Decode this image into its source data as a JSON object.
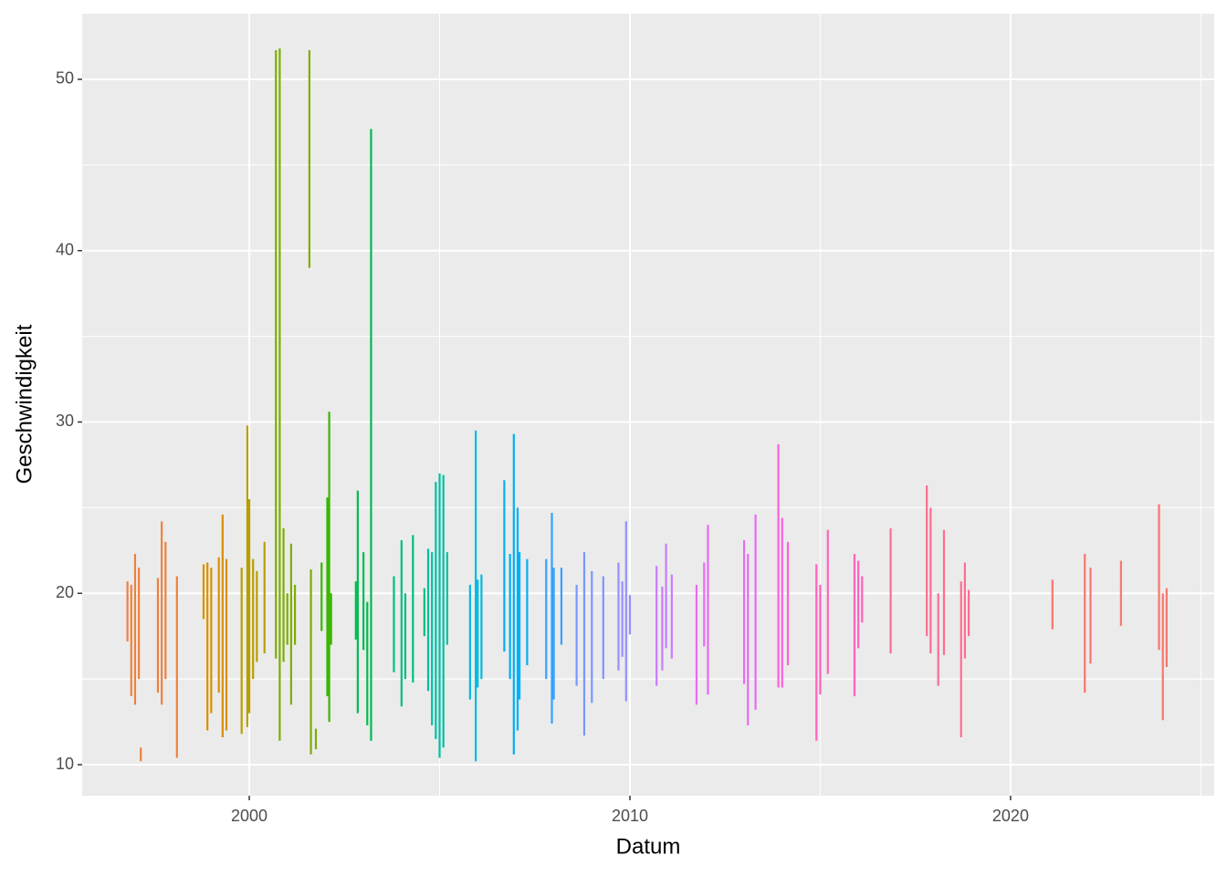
{
  "chart_data": {
    "type": "segment",
    "x_label": "Datum",
    "y_label": "Geschwindigkeit",
    "xlim": [
      1995.61,
      2025.35
    ],
    "ylim": [
      8.19,
      53.83
    ],
    "xticks": [
      2000,
      2010,
      2020
    ],
    "yticks": [
      10,
      20,
      30,
      40,
      50
    ],
    "grid": true,
    "series": [
      {
        "color": "#ED813E",
        "x": [
          1996.8,
          1996.9,
          1997.0,
          1997.1,
          1997.15,
          1997.6,
          1997.7,
          1997.8,
          1998.1
        ],
        "low": [
          17.2,
          14,
          13.5,
          15,
          10.2,
          14.2,
          13.5,
          15,
          10.4
        ],
        "high": [
          20.7,
          20.5,
          22.3,
          21.5,
          11,
          20.9,
          24.2,
          23,
          21
        ]
      },
      {
        "color": "#D89000",
        "x": [
          1998.8,
          1998.9,
          1999.0,
          1999.2,
          1999.3,
          1999.4
        ],
        "low": [
          18.5,
          12,
          13,
          14.2,
          11.6,
          12
        ],
        "high": [
          21.7,
          21.8,
          21.5,
          22.1,
          24.6,
          22
        ]
      },
      {
        "color": "#B79F00",
        "x": [
          1999.8,
          1999.95,
          2000.0,
          2000.1,
          2000.2,
          2000.4
        ],
        "low": [
          11.8,
          12.2,
          13,
          15,
          16,
          16.5
        ],
        "high": [
          21.5,
          29.8,
          25.5,
          22,
          21.3,
          23
        ]
      },
      {
        "color": "#7CAE00",
        "x": [
          2000.7,
          2000.8,
          2000.9,
          2001.0,
          2001.1,
          2001.2,
          2001.58,
          2001.62,
          2001.75
        ],
        "low": [
          16.2,
          11.4,
          16,
          17,
          13.5,
          17,
          39,
          10.6,
          10.9
        ],
        "high": [
          51.7,
          51.8,
          23.8,
          20,
          22.9,
          20.5,
          51.7,
          21.4,
          12.1
        ]
      },
      {
        "color": "#39B600",
        "x": [
          2001.9,
          2002.05,
          2002.1,
          2002.15
        ],
        "low": [
          17.8,
          14,
          12.5,
          17
        ],
        "high": [
          21.8,
          25.6,
          30.6,
          20
        ]
      },
      {
        "color": "#00BB4E",
        "x": [
          2002.8,
          2002.85,
          2003.0,
          2003.1,
          2003.2
        ],
        "low": [
          17.3,
          13,
          16.7,
          12.3,
          11.4
        ],
        "high": [
          20.7,
          26,
          22.4,
          19.5,
          47.1
        ]
      },
      {
        "color": "#00BF7D",
        "x": [
          2003.8,
          2004.0,
          2004.1,
          2004.3,
          2004.6
        ],
        "low": [
          15.4,
          13.4,
          15,
          14.8,
          17.5
        ],
        "high": [
          21,
          23.1,
          20,
          23.4,
          20.3
        ]
      },
      {
        "color": "#00C1A3",
        "x": [
          2004.7,
          2004.8,
          2004.9,
          2005.0,
          2005.1,
          2005.2
        ],
        "low": [
          14.3,
          12.3,
          11.5,
          10.4,
          11,
          17
        ],
        "high": [
          22.6,
          22.4,
          26.5,
          27,
          26.9,
          22.4
        ]
      },
      {
        "color": "#00BAE0",
        "x": [
          2005.8,
          2005.95,
          2006.0,
          2006.1
        ],
        "low": [
          13.8,
          10.2,
          14.5,
          15
        ],
        "high": [
          20.5,
          29.5,
          20.8,
          21.1
        ]
      },
      {
        "color": "#00B0F6",
        "x": [
          2006.7,
          2006.85,
          2006.95,
          2007.05,
          2007.1,
          2007.3
        ],
        "low": [
          16.6,
          15,
          10.6,
          12,
          13.8,
          15.8
        ],
        "high": [
          26.6,
          22.3,
          29.3,
          25,
          22.4,
          22
        ]
      },
      {
        "color": "#35A2FF",
        "x": [
          2007.8,
          2007.95,
          2008.0,
          2008.2
        ],
        "low": [
          15,
          12.4,
          13.8,
          17
        ],
        "high": [
          22,
          24.7,
          21.5,
          21.5
        ]
      },
      {
        "color": "#7997FF",
        "x": [
          2008.6,
          2008.8,
          2009.0,
          2009.3
        ],
        "low": [
          14.6,
          11.7,
          13.6,
          15
        ],
        "high": [
          20.5,
          22.4,
          21.3,
          21
        ]
      },
      {
        "color": "#9590FF",
        "x": [
          2009.7,
          2009.8,
          2009.9,
          2010.0
        ],
        "low": [
          15.5,
          16.3,
          13.7,
          17.6
        ],
        "high": [
          21.8,
          20.7,
          24.2,
          19.9
        ]
      },
      {
        "color": "#C77CFF",
        "x": [
          2010.7,
          2010.85,
          2010.95,
          2011.1
        ],
        "low": [
          14.6,
          15.5,
          16.8,
          16.2
        ],
        "high": [
          21.6,
          20.4,
          22.9,
          21.1
        ]
      },
      {
        "color": "#E76BF3",
        "x": [
          2011.75,
          2011.95,
          2012.05,
          2013.0,
          2013.1,
          2013.3
        ],
        "low": [
          13.5,
          16.9,
          14.1,
          14.7,
          12.3,
          13.2
        ],
        "high": [
          20.5,
          21.8,
          24,
          23.1,
          22.3,
          24.6
        ]
      },
      {
        "color": "#FA62DB",
        "x": [
          2013.9,
          2014.0,
          2014.15
        ],
        "low": [
          14.5,
          14.5,
          15.8
        ],
        "high": [
          28.7,
          24.4,
          23
        ]
      },
      {
        "color": "#FF62BC",
        "x": [
          2014.9,
          2015.0,
          2015.2,
          2015.9,
          2016.0,
          2016.1
        ],
        "low": [
          11.4,
          14.1,
          15.3,
          14,
          16.8,
          18.3
        ],
        "high": [
          21.7,
          20.5,
          23.7,
          22.3,
          21.9,
          21
        ]
      },
      {
        "color": "#FF6C91",
        "x": [
          2016.85,
          2017.8,
          2017.9,
          2018.1,
          2018.25,
          2018.7,
          2018.8,
          2018.9
        ],
        "low": [
          16.5,
          17.5,
          16.5,
          14.6,
          16.4,
          11.6,
          16.2,
          17.5
        ],
        "high": [
          23.8,
          26.3,
          25,
          20,
          23.7,
          20.7,
          21.8,
          20.2
        ]
      },
      {
        "color": "#F8766D",
        "x": [
          2021.1,
          2021.95,
          2022.1,
          2022.9,
          2023.9,
          2024.0,
          2024.1
        ],
        "low": [
          17.9,
          14.2,
          15.9,
          18.1,
          16.7,
          12.6,
          15.7
        ],
        "high": [
          20.8,
          22.3,
          21.5,
          21.9,
          25.2,
          20,
          20.3
        ]
      }
    ]
  }
}
